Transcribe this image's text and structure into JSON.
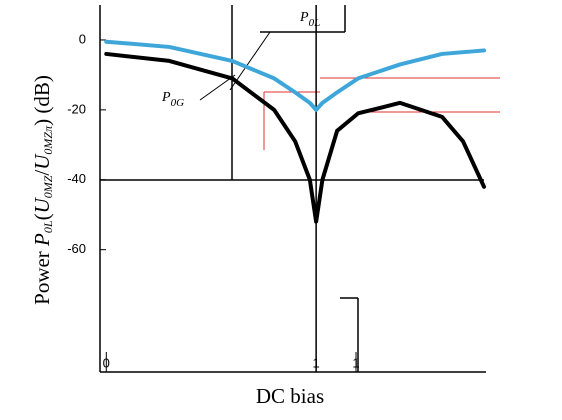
{
  "chart_data": {
    "type": "line",
    "xlabel": "DC bias",
    "ylabel": [
      "Power ",
      "P",
      "0L",
      "(",
      "U",
      "0MZ",
      "/",
      "U",
      "0MZπ",
      ") (dB)"
    ],
    "annotations": [
      {
        "text": "P",
        "sub": "0L"
      },
      {
        "text": "P",
        "sub": "0G"
      }
    ],
    "x": [
      0,
      0.3,
      0.6,
      0.8,
      0.9,
      0.97,
      1.0,
      1.03,
      1.1,
      1.2,
      1.4,
      1.6,
      1.7,
      1.8
    ],
    "series": [
      {
        "name": "P0L",
        "color": "#3ea6d8",
        "width": 4,
        "values": [
          -0.5,
          -2,
          -6,
          -11,
          -15,
          -18,
          -20,
          -18,
          -15,
          -11,
          -7,
          -4,
          -3.5,
          -3
        ]
      },
      {
        "name": "P0G",
        "color": "#000000",
        "width": 4,
        "values": [
          -4,
          -6,
          -11,
          -20,
          -29,
          -40,
          -52,
          -40,
          -26,
          -21,
          -18,
          -22,
          -29,
          -42
        ]
      }
    ],
    "xlim": [
      -0.03,
      1.8
    ],
    "ylim": [
      -95,
      10
    ],
    "xticks": [
      0,
      1,
      {
        "value": 1.19,
        "label": "1"
      }
    ],
    "yticks": [
      0,
      -20,
      -40,
      -60
    ]
  }
}
